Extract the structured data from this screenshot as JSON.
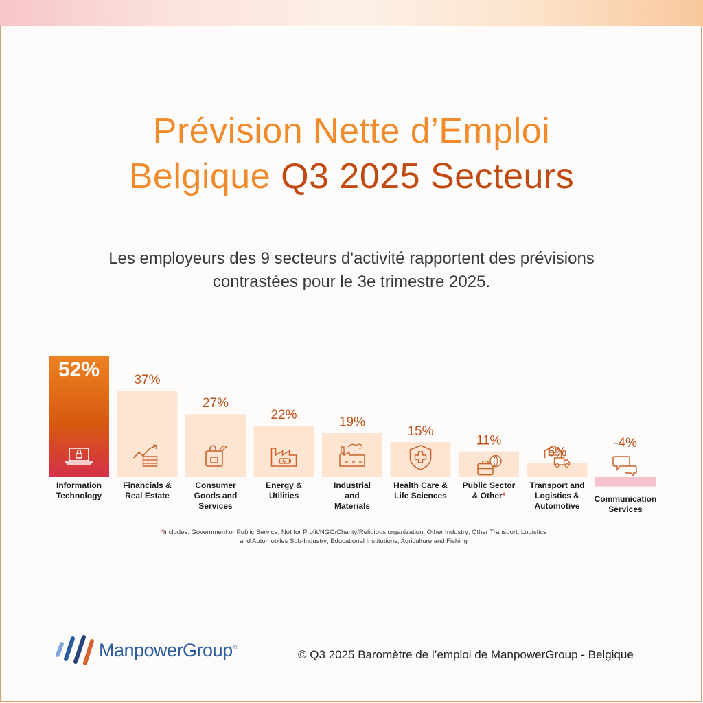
{
  "header": {
    "title_line1": "Prévision Nette d’Emploi",
    "title_line2_a": "Belgique",
    "title_line2_b": "Q3 2025 Secteurs",
    "subtitle": "Les employeurs des 9 secteurs d'activité rapportent des prévisions contrastées pour le 3e trimestre 2025."
  },
  "chart_data": {
    "type": "bar",
    "title": "",
    "xlabel": "",
    "ylabel": "",
    "ylim": [
      -4,
      52
    ],
    "grid": false,
    "legend": "none",
    "categories": [
      "Information Technology",
      "Financials & Real Estate",
      "Consumer Goods and Services",
      "Energy & Utilities",
      "Industrial and Materials",
      "Health Care & Life Sciences",
      "Public Sector & Other*",
      "Transport and Logistics & Automotive",
      "Communication Services"
    ],
    "values": [
      52,
      37,
      27,
      22,
      19,
      15,
      11,
      6,
      -4
    ],
    "value_labels": [
      "52%",
      "37%",
      "27%",
      "22%",
      "19%",
      "15%",
      "11%",
      "6%",
      "-4%"
    ],
    "icons": [
      "laptop-lock-icon",
      "growth-chart-icon",
      "shopping-bag-icon",
      "factory-battery-icon",
      "industrial-plant-icon",
      "medical-shield-icon",
      "briefcase-globe-icon",
      "warehouse-truck-icon",
      "chat-bubbles-icon"
    ],
    "colors": {
      "highlight_top": "#ee8222",
      "highlight_mid": "#d65a10",
      "highlight_bottom": "#d6304a",
      "bar": "#fde5d2",
      "negative_bar": "#f6c2cc",
      "value_text": "#c0501a",
      "icon": "#c9612a"
    }
  },
  "labels_display": [
    [
      "Information",
      "Technology"
    ],
    [
      "Financials &",
      "Real Estate"
    ],
    [
      "Consumer",
      "Goods and",
      "Services"
    ],
    [
      "Energy &",
      "Utilities"
    ],
    [
      "Industrial",
      "and",
      "Materials"
    ],
    [
      "Health Care &",
      "Life Sciences"
    ],
    [
      "Public Sector",
      "& Other"
    ],
    [
      "Transport and",
      "Logistics &",
      "Automotive"
    ],
    [
      "Communication",
      "Services"
    ]
  ],
  "footnote": {
    "star": "*",
    "text": "Includes: Government or Public Service; Not for Profit/NGO/Charity/Religious organization; Other Industry; Other Transport, Logistics and Automobiles Sub-Industry; Educational Institutions; Agriculture and Fishing"
  },
  "footer": {
    "logo_text": "ManpowerGroup",
    "logo_reg": "®",
    "copyright": "© Q3 2025 Baromètre de l’emploi de ManpowerGroup - Belgique"
  }
}
